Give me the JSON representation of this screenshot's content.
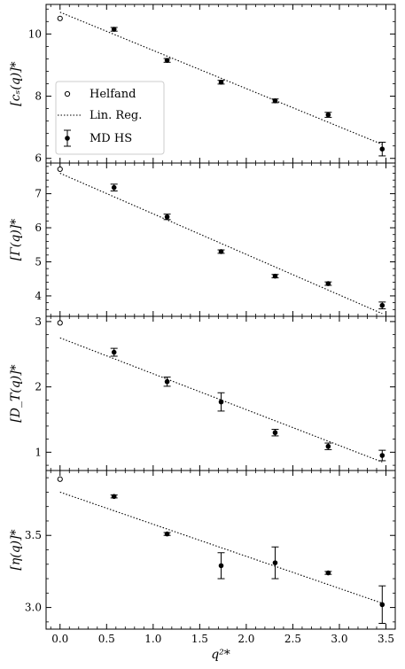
{
  "chart_data": {
    "type": "scatter",
    "shared_x": {
      "label": "q²*",
      "xlim": [
        -0.15,
        3.6
      ],
      "ticks": [
        0.0,
        0.5,
        1.0,
        1.5,
        2.0,
        2.5,
        3.0,
        3.5
      ],
      "tick_labels": [
        "0.0",
        "0.5",
        "1.0",
        "1.5",
        "2.0",
        "2.5",
        "3.0",
        "3.5"
      ]
    },
    "legend": {
      "placement": "left-middle of top panel",
      "entries": [
        "Helfand",
        "Lin. Reg.",
        "MD HS"
      ]
    },
    "panels": [
      {
        "ylabel": "[cₛ(q)]*",
        "ylim": [
          5.85,
          10.95
        ],
        "yticks": [
          6,
          8,
          10
        ],
        "ytick_labels": [
          "6",
          "8",
          "10"
        ],
        "helfand": [
          {
            "x": 0.0,
            "y": 10.5
          }
        ],
        "md_hs": [
          {
            "x": 0.58,
            "y": 10.15,
            "err": 0.06
          },
          {
            "x": 1.15,
            "y": 9.15,
            "err": 0.06
          },
          {
            "x": 1.73,
            "y": 8.45,
            "err": 0.06
          },
          {
            "x": 2.31,
            "y": 7.85,
            "err": 0.06
          },
          {
            "x": 2.88,
            "y": 7.4,
            "err": 0.08
          },
          {
            "x": 3.46,
            "y": 6.3,
            "err": 0.22
          }
        ],
        "linreg": {
          "x0": 0.0,
          "y0": 10.7,
          "x1": 3.46,
          "y1": 6.45
        }
      },
      {
        "ylabel": "[Γ(q)]*",
        "ylim": [
          3.4,
          7.9
        ],
        "yticks": [
          4,
          5,
          6,
          7
        ],
        "ytick_labels": [
          "4",
          "5",
          "6",
          "7"
        ],
        "helfand": [
          {
            "x": 0.0,
            "y": 7.72
          }
        ],
        "md_hs": [
          {
            "x": 0.58,
            "y": 7.18,
            "err": 0.1
          },
          {
            "x": 1.15,
            "y": 6.32,
            "err": 0.08
          },
          {
            "x": 1.73,
            "y": 5.3,
            "err": 0.05
          },
          {
            "x": 2.31,
            "y": 4.58,
            "err": 0.05
          },
          {
            "x": 2.88,
            "y": 4.36,
            "err": 0.05
          },
          {
            "x": 3.46,
            "y": 3.72,
            "err": 0.1
          }
        ],
        "linreg": {
          "x0": 0.0,
          "y0": 7.6,
          "x1": 3.46,
          "y1": 3.48
        }
      },
      {
        "ylabel": "[D_T(q)]*",
        "ylim": [
          0.72,
          3.08
        ],
        "yticks": [
          1,
          2,
          3
        ],
        "ytick_labels": [
          "1",
          "2",
          "3"
        ],
        "helfand": [
          {
            "x": 0.0,
            "y": 2.98
          }
        ],
        "md_hs": [
          {
            "x": 0.58,
            "y": 2.53,
            "err": 0.06
          },
          {
            "x": 1.15,
            "y": 2.08,
            "err": 0.07
          },
          {
            "x": 1.73,
            "y": 1.77,
            "err": 0.14
          },
          {
            "x": 2.31,
            "y": 1.3,
            "err": 0.05
          },
          {
            "x": 2.88,
            "y": 1.09,
            "err": 0.05
          },
          {
            "x": 3.46,
            "y": 0.95,
            "err": 0.08
          }
        ],
        "linreg": {
          "x0": 0.0,
          "y0": 2.75,
          "x1": 3.46,
          "y1": 0.85
        }
      },
      {
        "ylabel": "[η(q)]*",
        "ylim": [
          2.85,
          3.95
        ],
        "yticks": [
          3.0,
          3.5
        ],
        "ytick_labels": [
          "3.0",
          "3.5"
        ],
        "helfand": [
          {
            "x": 0.0,
            "y": 3.89
          }
        ],
        "md_hs": [
          {
            "x": 0.58,
            "y": 3.77,
            "err": 0.01
          },
          {
            "x": 1.15,
            "y": 3.51,
            "err": 0.01
          },
          {
            "x": 1.73,
            "y": 3.29,
            "err": 0.09
          },
          {
            "x": 2.31,
            "y": 3.31,
            "err": 0.11
          },
          {
            "x": 2.88,
            "y": 3.24,
            "err": 0.01
          },
          {
            "x": 3.46,
            "y": 3.02,
            "err": 0.13
          }
        ],
        "linreg": {
          "x0": 0.0,
          "y0": 3.8,
          "x1": 3.46,
          "y1": 3.03
        }
      }
    ]
  }
}
